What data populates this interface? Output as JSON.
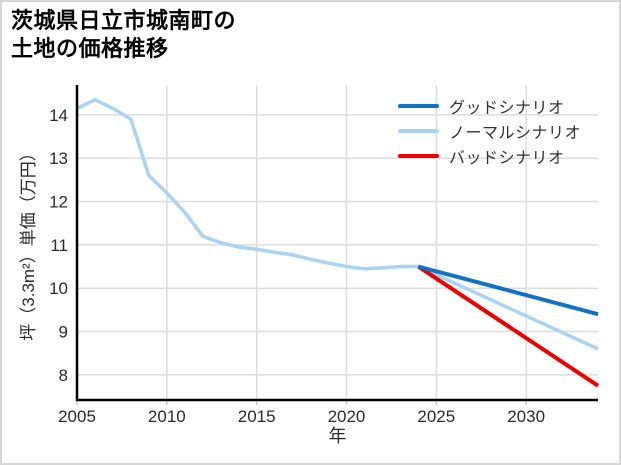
{
  "header": {
    "title_line1": "茨城県日立市城南町の",
    "title_line2": "土地の価格推移"
  },
  "legend": {
    "items": [
      {
        "label": "グッドシナリオ",
        "color": "#1273C4"
      },
      {
        "label": "ノーマルシナリオ",
        "color": "#A8D3F4"
      },
      {
        "label": "バッドシナリオ",
        "color": "#EE0000"
      }
    ]
  },
  "chart_data": {
    "type": "line",
    "title": "茨城県日立市城南町の土地の価格推移",
    "xlabel": "年",
    "ylabel": "坪（3.3m²）単価（万円）",
    "xlim": [
      2005,
      2034
    ],
    "ylim": [
      7.42,
      14.69
    ],
    "xticks": [
      2005,
      2010,
      2015,
      2020,
      2025,
      2030
    ],
    "yticks": [
      8,
      9,
      10,
      11,
      12,
      13,
      14
    ],
    "grid": true,
    "legend_position": "upper-right",
    "colors": {
      "gridline": "#dcdcdc",
      "spine": "#000000",
      "tick_label": "#2b2b2b"
    },
    "series": [
      {
        "name": "ノーマルシナリオ",
        "color": "#A8D3F4",
        "width": 3.5,
        "x": [
          2005,
          2006,
          2007,
          2008,
          2009,
          2010,
          2011,
          2012,
          2013,
          2014,
          2015,
          2016,
          2017,
          2018,
          2019,
          2020,
          2021,
          2022,
          2023,
          2024,
          2034
        ],
        "y": [
          14.15,
          14.35,
          14.15,
          13.9,
          12.6,
          12.2,
          11.75,
          11.2,
          11.05,
          10.95,
          10.9,
          10.83,
          10.77,
          10.67,
          10.58,
          10.5,
          10.45,
          10.47,
          10.5,
          10.5,
          8.6
        ]
      },
      {
        "name": "バッドシナリオ",
        "color": "#EE0000",
        "width": 4,
        "x": [
          2024,
          2034
        ],
        "y": [
          10.5,
          7.75
        ]
      },
      {
        "name": "グッドシナリオ",
        "color": "#1273C4",
        "width": 4,
        "x": [
          2024,
          2034
        ],
        "y": [
          10.5,
          9.4
        ]
      }
    ]
  }
}
